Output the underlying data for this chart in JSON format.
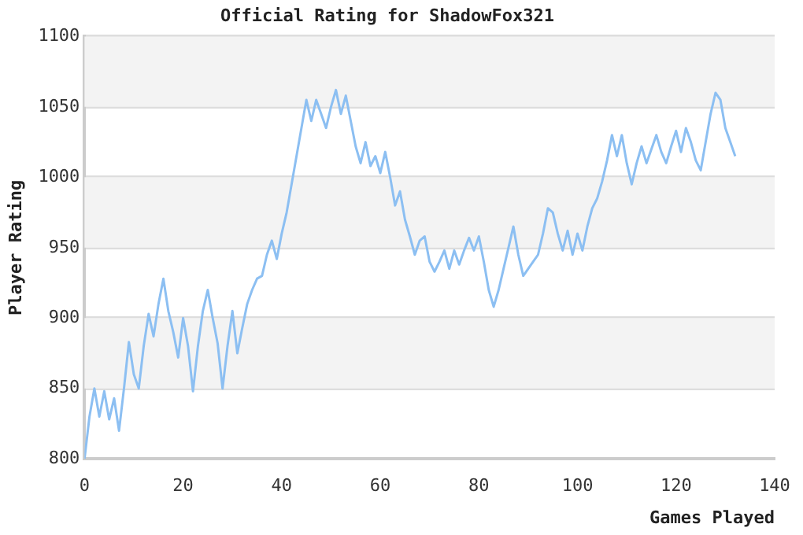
{
  "chart_data": {
    "type": "line",
    "title": "Official Rating for ShadowFox321",
    "xlabel": "Games Played",
    "ylabel": "Player Rating",
    "x": [
      0,
      1,
      2,
      3,
      4,
      5,
      6,
      7,
      8,
      9,
      10,
      11,
      12,
      13,
      14,
      15,
      16,
      17,
      18,
      19,
      20,
      21,
      22,
      23,
      24,
      25,
      26,
      27,
      28,
      29,
      30,
      31,
      32,
      33,
      34,
      35,
      36,
      37,
      38,
      39,
      40,
      41,
      42,
      43,
      44,
      45,
      46,
      47,
      48,
      49,
      50,
      51,
      52,
      53,
      54,
      55,
      56,
      57,
      58,
      59,
      60,
      61,
      62,
      63,
      64,
      65,
      66,
      67,
      68,
      69,
      70,
      71,
      72,
      73,
      74,
      75,
      76,
      77,
      78,
      79,
      80,
      81,
      82,
      83,
      84,
      85,
      86,
      87,
      88,
      89,
      90,
      91,
      92,
      93,
      94,
      95,
      96,
      97,
      98,
      99,
      100,
      101,
      102,
      103,
      104,
      105,
      106,
      107,
      108,
      109,
      110,
      111,
      112,
      113,
      114,
      115,
      116,
      117,
      118,
      119,
      120,
      121,
      122,
      123,
      124,
      125,
      126,
      127,
      128,
      129,
      130,
      131,
      132
    ],
    "series": [
      {
        "color": "#8cbff2",
        "values": [
          800,
          830,
          850,
          830,
          848,
          828,
          843,
          820,
          850,
          883,
          860,
          850,
          880,
          903,
          887,
          910,
          928,
          905,
          890,
          872,
          900,
          880,
          848,
          880,
          905,
          920,
          900,
          882,
          850,
          880,
          905,
          875,
          893,
          910,
          920,
          928,
          930,
          945,
          955,
          942,
          960,
          975,
          995,
          1015,
          1035,
          1055,
          1040,
          1055,
          1045,
          1035,
          1050,
          1062,
          1045,
          1058,
          1040,
          1022,
          1010,
          1025,
          1008,
          1015,
          1003,
          1018,
          1000,
          980,
          990,
          970,
          958,
          945,
          955,
          958,
          940,
          933,
          940,
          948,
          935,
          948,
          938,
          948,
          957,
          948,
          958,
          940,
          920,
          908,
          920,
          935,
          950,
          965,
          945,
          930,
          935,
          940,
          945,
          960,
          978,
          975,
          960,
          948,
          962,
          945,
          960,
          948,
          965,
          978,
          985,
          997,
          1012,
          1030,
          1015,
          1030,
          1010,
          995,
          1010,
          1022,
          1010,
          1020,
          1030,
          1018,
          1010,
          1022,
          1033,
          1018,
          1035,
          1025,
          1012,
          1005,
          1025,
          1045,
          1060,
          1055,
          1035,
          1025,
          1015
        ]
      }
    ],
    "xlim": [
      0,
      140
    ],
    "xticks": [
      0,
      20,
      40,
      60,
      80,
      100,
      120,
      140
    ],
    "ylim": [
      800,
      1100
    ],
    "yticks": [
      800,
      850,
      900,
      950,
      1000,
      1050,
      1100
    ],
    "grid": "y",
    "legend": false,
    "marker": "none",
    "line_style": "solid"
  }
}
